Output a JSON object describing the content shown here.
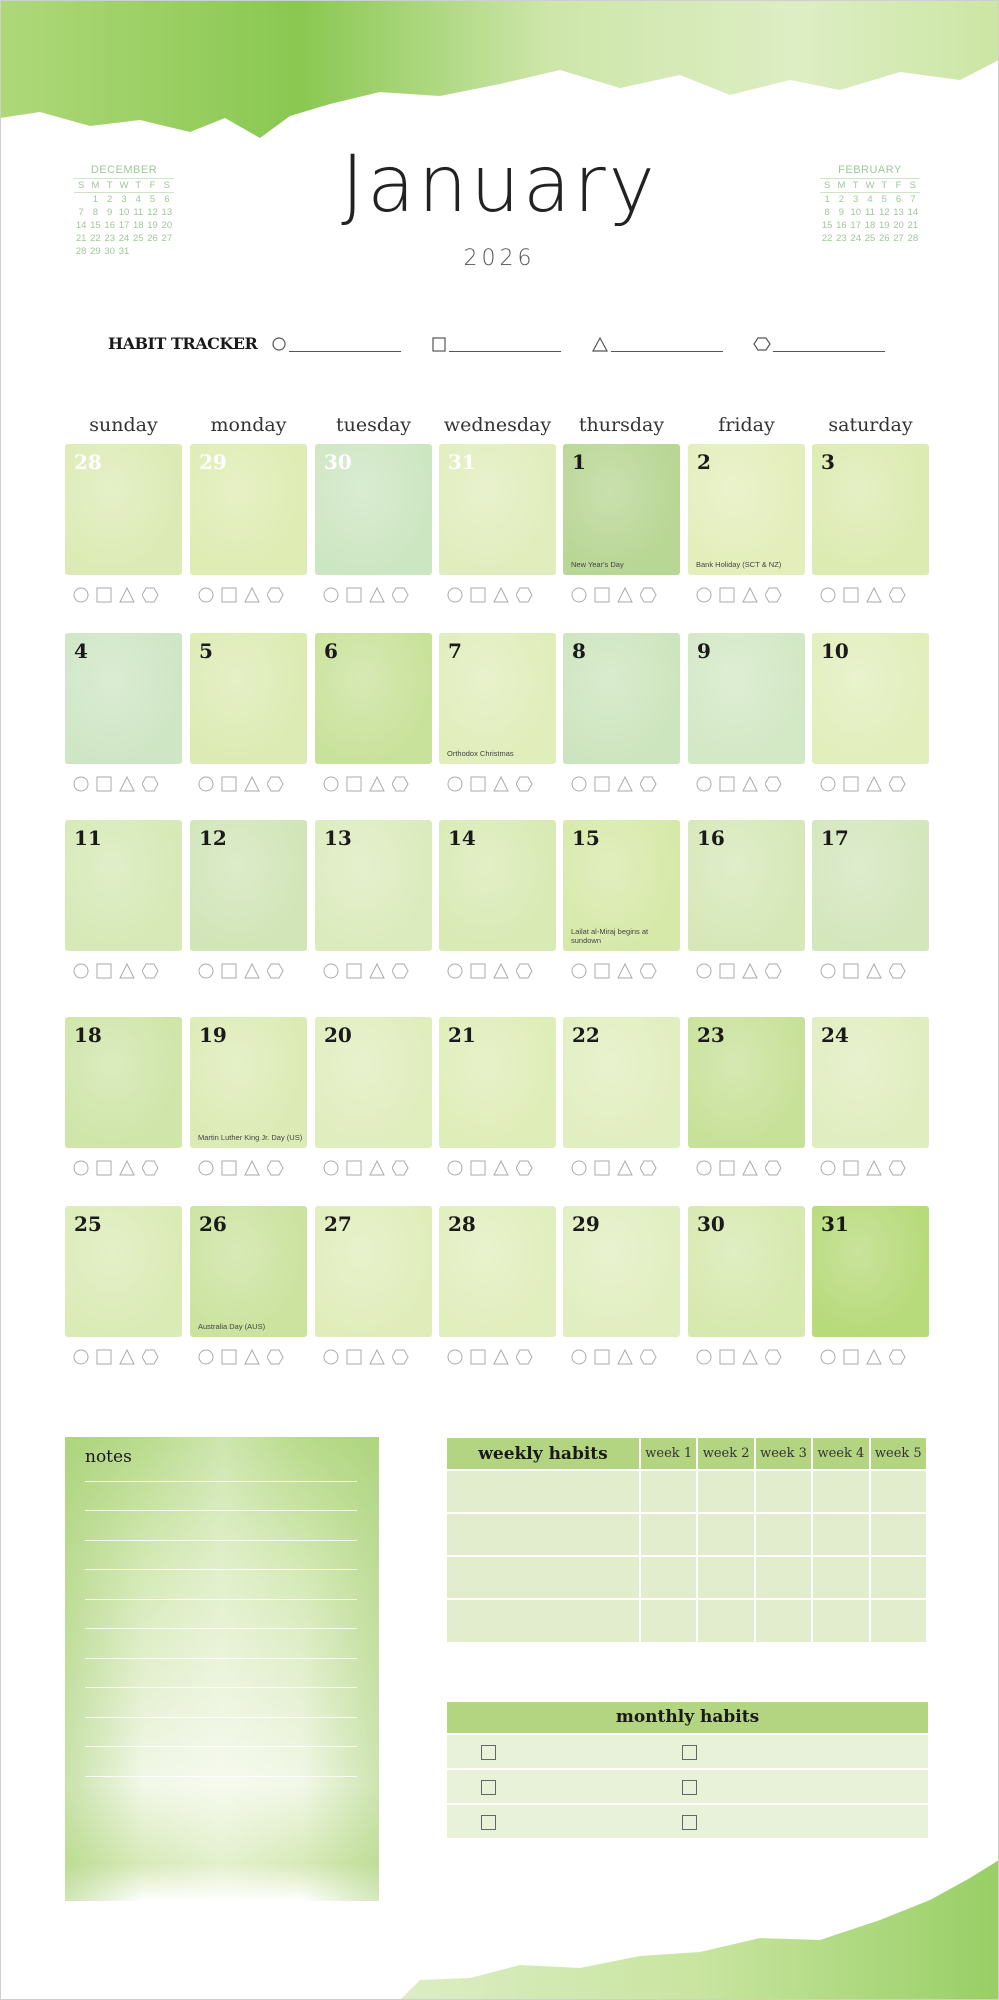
{
  "header": {
    "month": "January",
    "year": "2026"
  },
  "mini_calendars": [
    {
      "name": "DECEMBER",
      "weekdays": [
        "S",
        "M",
        "T",
        "W",
        "T",
        "F",
        "S"
      ],
      "weeks": [
        [
          "",
          "1",
          "2",
          "3",
          "4",
          "5",
          "6"
        ],
        [
          "7",
          "8",
          "9",
          "10",
          "11",
          "12",
          "13"
        ],
        [
          "14",
          "15",
          "16",
          "17",
          "18",
          "19",
          "20"
        ],
        [
          "21",
          "22",
          "23",
          "24",
          "25",
          "26",
          "27"
        ],
        [
          "28",
          "29",
          "30",
          "31",
          "",
          "",
          ""
        ]
      ]
    },
    {
      "name": "FEBRUARY",
      "weekdays": [
        "S",
        "M",
        "T",
        "W",
        "T",
        "F",
        "S"
      ],
      "weeks": [
        [
          "1",
          "2",
          "3",
          "4",
          "5",
          "6",
          "7"
        ],
        [
          "8",
          "9",
          "10",
          "11",
          "12",
          "13",
          "14"
        ],
        [
          "15",
          "16",
          "17",
          "18",
          "19",
          "20",
          "21"
        ],
        [
          "22",
          "23",
          "24",
          "25",
          "26",
          "27",
          "28"
        ]
      ]
    }
  ],
  "habit_tracker": {
    "label": "HABIT TRACKER",
    "shapes": [
      "circle",
      "square",
      "triangle",
      "hexagon"
    ]
  },
  "weekdays": [
    "sunday",
    "monday",
    "tuesday",
    "wednesday",
    "thursday",
    "friday",
    "saturday"
  ],
  "weeks": [
    [
      {
        "day": "28",
        "muted": true,
        "color": "#dcebb5"
      },
      {
        "day": "29",
        "muted": true,
        "color": "#dfecb3"
      },
      {
        "day": "30",
        "muted": true,
        "color": "#cde6c2"
      },
      {
        "day": "31",
        "muted": true,
        "color": "#e1edbd"
      },
      {
        "day": "1",
        "color": "#b8d694",
        "holiday": "New Year's Day"
      },
      {
        "day": "2",
        "color": "#e3eebb",
        "holiday": "Bank Holiday (SCT & NZ)"
      },
      {
        "day": "3",
        "color": "#dcebb1"
      }
    ],
    [
      {
        "day": "4",
        "color": "#cfe6c5"
      },
      {
        "day": "5",
        "color": "#dcebb3"
      },
      {
        "day": "6",
        "color": "#c9e29b"
      },
      {
        "day": "7",
        "color": "#e1edbb",
        "holiday": "Orthodox Christmas"
      },
      {
        "day": "8",
        "color": "#cde5be"
      },
      {
        "day": "9",
        "color": "#d3e8c5"
      },
      {
        "day": "10",
        "color": "#e2eebc"
      }
    ],
    [
      {
        "day": "11",
        "color": "#d6e9b6"
      },
      {
        "day": "12",
        "color": "#d1e5b8"
      },
      {
        "day": "13",
        "color": "#dcebbd"
      },
      {
        "day": "14",
        "color": "#d9eab4"
      },
      {
        "day": "15",
        "color": "#d7e9a9",
        "holiday": "Lailat al-Miraj begins at sundown"
      },
      {
        "day": "16",
        "color": "#d6e8b8"
      },
      {
        "day": "17",
        "color": "#d3e6bc"
      }
    ],
    [
      {
        "day": "18",
        "color": "#cfe5a9"
      },
      {
        "day": "19",
        "color": "#dcebb5",
        "holiday": "Martin Luther King Jr. Day (US)"
      },
      {
        "day": "20",
        "color": "#e0edbd"
      },
      {
        "day": "21",
        "color": "#dfedb8"
      },
      {
        "day": "22",
        "color": "#e1eebf"
      },
      {
        "day": "23",
        "color": "#c8e199"
      },
      {
        "day": "24",
        "color": "#e0edbf"
      }
    ],
    [
      {
        "day": "25",
        "color": "#dbebb6"
      },
      {
        "day": "26",
        "color": "#cbe39f",
        "holiday": "Australia Day (AUS)"
      },
      {
        "day": "27",
        "color": "#e0edbb"
      },
      {
        "day": "28",
        "color": "#e1eebd"
      },
      {
        "day": "29",
        "color": "#e1eec0"
      },
      {
        "day": "30",
        "color": "#d6e9ae"
      },
      {
        "day": "31",
        "color": "#b7da7a"
      }
    ]
  ],
  "notes": {
    "title": "notes"
  },
  "weekly_habits": {
    "title": "weekly habits",
    "columns": [
      "week 1",
      "week 2",
      "week 3",
      "week 4",
      "week 5"
    ]
  },
  "monthly_habits": {
    "title": "monthly habits"
  },
  "colors": {
    "accent": "#b3d481",
    "light": "#e2edcd",
    "wash": "#8cc63f"
  }
}
